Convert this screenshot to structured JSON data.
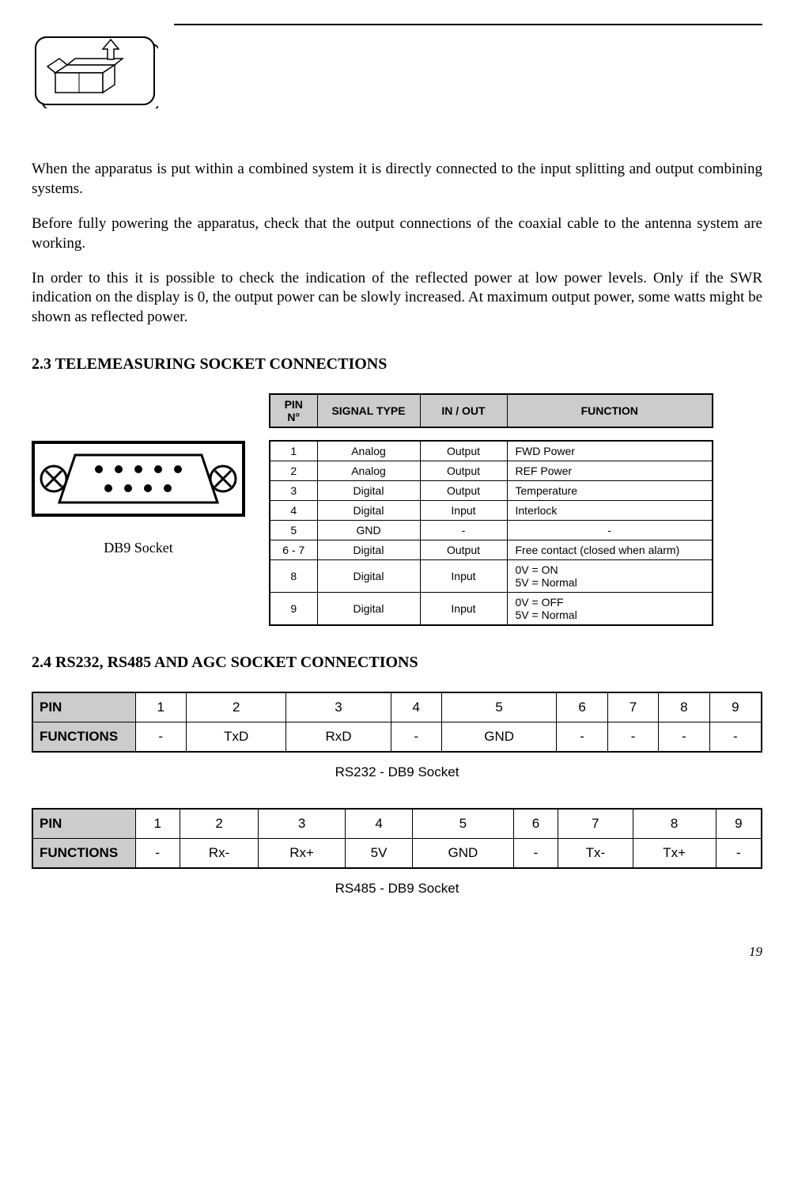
{
  "paragraphs": {
    "p1": "When the apparatus is put within a combined system it is directly connected to the input splitting and output combining systems.",
    "p2": "Before fully powering the apparatus, check that the output connections of the coaxial cable to the antenna system are working.",
    "p3": "In order to this it is possible to check the indication of the reflected power at low power levels. Only if the SWR indication on the display is 0, the output power can be slowly increased. At maximum output power, some watts might be shown as reflected power."
  },
  "sections": {
    "s23": "2.3 TELEMEASURING SOCKET CONNECTIONS",
    "s24": "2.4 RS232, RS485 AND AGC SOCKET CONNECTIONS"
  },
  "db9_caption": "DB9 Socket",
  "tele_table": {
    "headers": {
      "pin": "PIN N°",
      "signal": "SIGNAL TYPE",
      "io": "IN / OUT",
      "func": "FUNCTION"
    },
    "rows": [
      {
        "pin": "1",
        "signal": "Analog",
        "io": "Output",
        "func": "FWD Power"
      },
      {
        "pin": "2",
        "signal": "Analog",
        "io": "Output",
        "func": "REF Power"
      },
      {
        "pin": "3",
        "signal": "Digital",
        "io": "Output",
        "func": "Temperature"
      },
      {
        "pin": "4",
        "signal": "Digital",
        "io": "Input",
        "func": "Interlock"
      },
      {
        "pin": "5",
        "signal": "GND",
        "io": "-",
        "func": "-"
      },
      {
        "pin": "6 - 7",
        "signal": "Digital",
        "io": "Output",
        "func": "Free contact (closed when alarm)"
      },
      {
        "pin": "8",
        "signal": "Digital",
        "io": "Input",
        "func": "0V = ON\n5V = Normal"
      },
      {
        "pin": "9",
        "signal": "Digital",
        "io": "Input",
        "func": "0V = OFF\n5V = Normal"
      }
    ]
  },
  "rs232": {
    "row_labels": {
      "pin": "PIN",
      "func": "FUNCTIONS"
    },
    "pins": [
      "1",
      "2",
      "3",
      "4",
      "5",
      "6",
      "7",
      "8",
      "9"
    ],
    "funcs": [
      "-",
      "TxD",
      "RxD",
      "-",
      "GND",
      "-",
      "-",
      "-",
      "-"
    ],
    "caption": "RS232 - DB9 Socket"
  },
  "rs485": {
    "row_labels": {
      "pin": "PIN",
      "func": "FUNCTIONS"
    },
    "pins": [
      "1",
      "2",
      "3",
      "4",
      "5",
      "6",
      "7",
      "8",
      "9"
    ],
    "funcs": [
      "-",
      "Rx-",
      "Rx+",
      "5V",
      "GND",
      "-",
      "Tx-",
      "Tx+",
      "-"
    ],
    "caption": "RS485 - DB9 Socket"
  },
  "page_number": "19",
  "colors": {
    "header_bg": "#cccccc",
    "border": "#000000",
    "text": "#000000"
  }
}
